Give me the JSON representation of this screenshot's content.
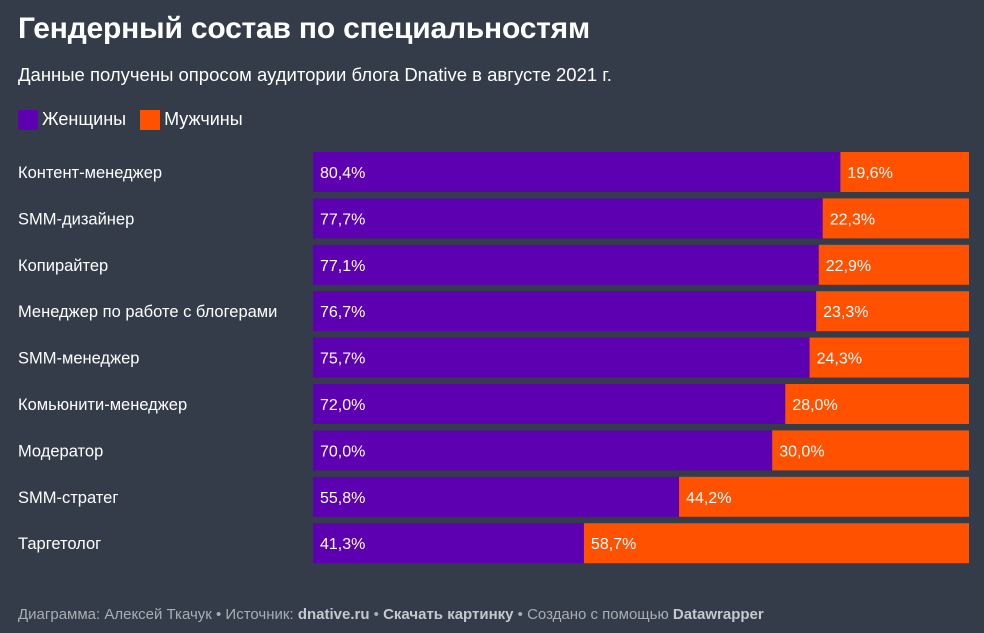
{
  "title": "Гендерный состав по специальностям",
  "subtitle": "Данные получены опросом аудитории блога Dnative в августе 2021 г.",
  "colors": {
    "women": "#5c00b2",
    "men": "#ff5100",
    "background": "#333c48"
  },
  "chart_data": {
    "type": "bar",
    "orientation": "horizontal",
    "stacked": true,
    "percent_stacked": true,
    "legend_position": "top-left",
    "categories": [
      "Контент-менеджер",
      "SMM-дизайнер",
      "Копирайтер",
      "Менеджер по работе с блогерами",
      "SMM-менеджер",
      "Комьюнити-менеджер",
      "Модератор",
      "SMM-стратег",
      "Таргетолог"
    ],
    "series": [
      {
        "name": "Женщины",
        "color": "#5c00b2",
        "values": [
          80.4,
          77.7,
          77.1,
          76.7,
          75.7,
          72.0,
          70.0,
          55.8,
          41.3
        ],
        "labels": [
          "80,4%",
          "77,7%",
          "77,1%",
          "76,7%",
          "75,7%",
          "72,0%",
          "70,0%",
          "55,8%",
          "41,3%"
        ]
      },
      {
        "name": "Мужчины",
        "color": "#ff5100",
        "values": [
          19.6,
          22.3,
          22.9,
          23.3,
          24.3,
          28.0,
          30.0,
          44.2,
          58.7
        ],
        "labels": [
          "19,6%",
          "22,3%",
          "22,9%",
          "23,3%",
          "24,3%",
          "28,0%",
          "30,0%",
          "44,2%",
          "58,7%"
        ]
      }
    ],
    "xlim": [
      0,
      100
    ]
  },
  "footer": {
    "author_prefix": "Диаграмма: Алексей Ткачук • Источник: ",
    "source": "dnative.ru",
    "sep1": " • ",
    "download": "Скачать картинку",
    "sep2": " • Создано с помощью ",
    "tool": "Datawrapper"
  }
}
